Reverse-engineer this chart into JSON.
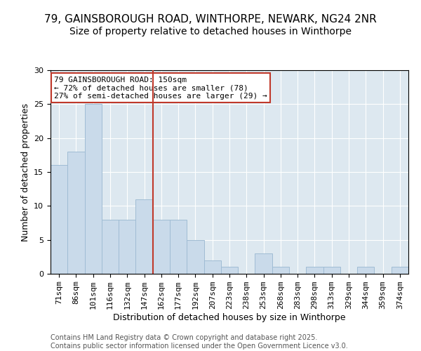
{
  "title1": "79, GAINSBOROUGH ROAD, WINTHORPE, NEWARK, NG24 2NR",
  "title2": "Size of property relative to detached houses in Winthorpe",
  "xlabel": "Distribution of detached houses by size in Winthorpe",
  "ylabel": "Number of detached properties",
  "bar_labels": [
    "71sqm",
    "86sqm",
    "101sqm",
    "116sqm",
    "132sqm",
    "147sqm",
    "162sqm",
    "177sqm",
    "192sqm",
    "207sqm",
    "223sqm",
    "238sqm",
    "253sqm",
    "268sqm",
    "283sqm",
    "298sqm",
    "313sqm",
    "329sqm",
    "344sqm",
    "359sqm",
    "374sqm"
  ],
  "bar_values": [
    16,
    18,
    25,
    8,
    8,
    11,
    8,
    8,
    5,
    2,
    1,
    0,
    3,
    1,
    0,
    1,
    1,
    0,
    1,
    0,
    1
  ],
  "bar_color": "#c9daea",
  "bar_edge_color": "#a0bcd4",
  "plot_bg_color": "#dde8f0",
  "fig_bg_color": "#ffffff",
  "vline_x_index": 5,
  "vline_color": "#c0392b",
  "annotation_text": "79 GAINSBOROUGH ROAD: 150sqm\n← 72% of detached houses are smaller (78)\n27% of semi-detached houses are larger (29) →",
  "annotation_box_color": "#ffffff",
  "annotation_box_edge_color": "#c0392b",
  "ylim": [
    0,
    30
  ],
  "yticks": [
    0,
    5,
    10,
    15,
    20,
    25,
    30
  ],
  "footer_text": "Contains HM Land Registry data © Crown copyright and database right 2025.\nContains public sector information licensed under the Open Government Licence v3.0.",
  "title_fontsize": 11,
  "subtitle_fontsize": 10,
  "axis_label_fontsize": 9,
  "tick_fontsize": 8,
  "annotation_fontsize": 8,
  "footer_fontsize": 7
}
